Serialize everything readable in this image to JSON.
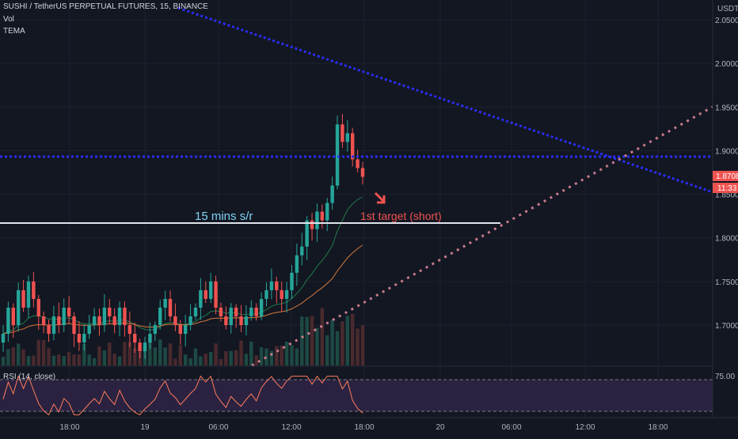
{
  "header": {
    "symbol": "SUSHI / TetherUS PERPETUAL FUTURES, 15, BINANCE",
    "indicator_vol": "Vol",
    "indicator_tema": "TEMA"
  },
  "price_axis": {
    "currency": "USDT",
    "ticks": [
      "2.0500",
      "2.0000",
      "1.9500",
      "1.9000",
      "1.8500",
      "1.8000",
      "1.7500",
      "1.7000"
    ],
    "last_price": "1.8708",
    "countdown": "11:33"
  },
  "rsi": {
    "label": "RSI (14, close)",
    "tick": "75.00"
  },
  "time_axis": {
    "ticks": [
      "18:00",
      "19",
      "06:00",
      "12:00",
      "18:00",
      "20",
      "06:00",
      "12:00",
      "18:00"
    ]
  },
  "annotations": {
    "support_label": "15 mins s/r",
    "target_label": "1st target (short)"
  },
  "colors": {
    "background": "#131722",
    "up": "#26a69a",
    "down": "#ef5350",
    "trend_blue": "#2a2ef5",
    "trend_pink": "#c77a8a",
    "rsi_fill": "#2a2240",
    "support_line": "#e0e3eb",
    "support_text": "#7fd3f5",
    "target_text": "#ef5350"
  },
  "chart_data": {
    "type": "candlestick",
    "interval": "15",
    "ylim": [
      1.66,
      2.07
    ],
    "close_path": [
      1.69,
      1.72,
      1.7,
      1.74,
      1.72,
      1.75,
      1.73,
      1.71,
      1.7,
      1.69,
      1.71,
      1.7,
      1.72,
      1.71,
      1.69,
      1.68,
      1.69,
      1.7,
      1.71,
      1.7,
      1.72,
      1.71,
      1.7,
      1.72,
      1.7,
      1.69,
      1.68,
      1.67,
      1.68,
      1.69,
      1.7,
      1.72,
      1.73,
      1.71,
      1.7,
      1.69,
      1.7,
      1.71,
      1.72,
      1.74,
      1.73,
      1.75,
      1.72,
      1.71,
      1.7,
      1.72,
      1.71,
      1.7,
      1.71,
      1.72,
      1.71,
      1.73,
      1.74,
      1.75,
      1.74,
      1.73,
      1.74,
      1.76,
      1.78,
      1.79,
      1.82,
      1.81,
      1.83,
      1.82,
      1.84,
      1.86,
      1.93,
      1.91,
      1.92,
      1.89,
      1.88,
      1.87
    ],
    "last_close": 1.8708,
    "support_level": 1.818,
    "resistance_level": 1.893
  }
}
